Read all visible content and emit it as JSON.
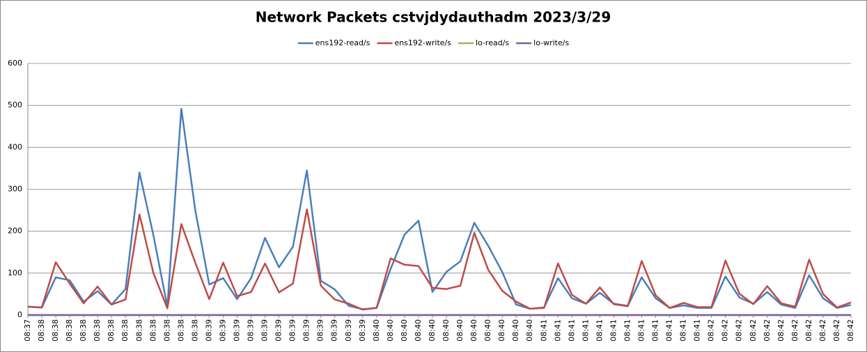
{
  "chart_data": {
    "type": "line",
    "title": "Network Packets cstvjdydauthadm  2023/3/29",
    "categories": [
      "08:37",
      "08:38",
      "08:38",
      "08:38",
      "08:38",
      "08:38",
      "08:38",
      "08:38",
      "08:38",
      "08:38",
      "08:38",
      "08:38",
      "08:38",
      "08:39",
      "08:39",
      "08:39",
      "08:39",
      "08:39",
      "08:39",
      "08:39",
      "08:39",
      "08:39",
      "08:39",
      "08:39",
      "08:39",
      "08:40",
      "08:40",
      "08:40",
      "08:40",
      "08:40",
      "08:40",
      "08:40",
      "08:40",
      "08:40",
      "08:40",
      "08:40",
      "08:40",
      "08:41",
      "08:41",
      "08:41",
      "08:41",
      "08:41",
      "08:41",
      "08:41",
      "08:41",
      "08:41",
      "08:41",
      "08:41",
      "08:41",
      "08:42",
      "08:42",
      "08:42",
      "08:42",
      "08:42",
      "08:42",
      "08:42",
      "08:42",
      "08:42",
      "08:42",
      "08:42"
    ],
    "series": [
      {
        "name": "ens192-read/s",
        "color": "#4a7ebb",
        "values": [
          20,
          18,
          90,
          83,
          32,
          57,
          25,
          62,
          340,
          190,
          20,
          492,
          250,
          73,
          88,
          38,
          88,
          184,
          114,
          163,
          345,
          82,
          61,
          22,
          14,
          17,
          110,
          192,
          225,
          55,
          103,
          128,
          220,
          165,
          103,
          25,
          15,
          18,
          88,
          40,
          27,
          53,
          27,
          22,
          90,
          40,
          17,
          23,
          17,
          17,
          92,
          42,
          27,
          55,
          25,
          17,
          95,
          40,
          17,
          24
        ]
      },
      {
        "name": "ens192-write/s",
        "color": "#be4b48",
        "values": [
          20,
          18,
          126,
          75,
          28,
          68,
          25,
          37,
          240,
          100,
          16,
          217,
          125,
          38,
          125,
          45,
          55,
          123,
          54,
          75,
          252,
          70,
          37,
          27,
          13,
          17,
          135,
          120,
          117,
          65,
          62,
          70,
          196,
          108,
          58,
          32,
          15,
          17,
          123,
          48,
          27,
          66,
          26,
          21,
          129,
          47,
          17,
          29,
          19,
          19,
          130,
          51,
          26,
          69,
          28,
          20,
          132,
          50,
          18,
          30
        ]
      },
      {
        "name": "lo-read/s",
        "color": "#98b954",
        "values": [
          0,
          0,
          0,
          0,
          0,
          0,
          0,
          0,
          0,
          0,
          0,
          0,
          0,
          0,
          0,
          0,
          0,
          0,
          0,
          0,
          0,
          0,
          0,
          0,
          0,
          0,
          0,
          0,
          0,
          0,
          0,
          0,
          0,
          0,
          0,
          0,
          0,
          0,
          0,
          0,
          0,
          0,
          0,
          0,
          0,
          0,
          0,
          0,
          0,
          0,
          0,
          0,
          0,
          0,
          0,
          0,
          0,
          0,
          0,
          0
        ]
      },
      {
        "name": "lo-write/s",
        "color": "#7d60a0",
        "values": [
          0,
          0,
          0,
          0,
          0,
          0,
          0,
          0,
          0,
          0,
          0,
          0,
          0,
          0,
          0,
          0,
          0,
          0,
          0,
          0,
          0,
          0,
          0,
          0,
          0,
          0,
          0,
          0,
          0,
          0,
          0,
          0,
          0,
          0,
          0,
          0,
          0,
          0,
          0,
          0,
          0,
          0,
          0,
          0,
          0,
          0,
          0,
          0,
          0,
          0,
          0,
          0,
          0,
          0,
          0,
          0,
          0,
          0,
          0,
          0
        ]
      }
    ],
    "ylim": [
      0,
      600
    ],
    "yticks": [
      0,
      100,
      200,
      300,
      400,
      500,
      600
    ],
    "grid": true,
    "legend": "top"
  }
}
